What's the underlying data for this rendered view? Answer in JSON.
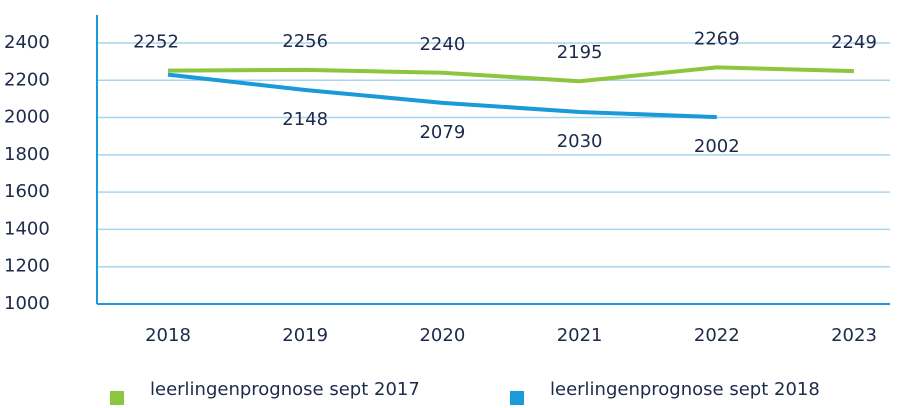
{
  "chart_data": {
    "type": "line",
    "categories": [
      "2018",
      "2019",
      "2020",
      "2021",
      "2022",
      "2023"
    ],
    "series": [
      {
        "name": "leerlingenprognose sept 2017",
        "color": "#8cc63f",
        "values": [
          2252,
          2256,
          2240,
          2195,
          2269,
          2249
        ]
      },
      {
        "name": "leerlingenprognose sept 2018",
        "color": "#1a9ad6",
        "values": [
          2230,
          2148,
          2079,
          2030,
          2002,
          null
        ],
        "value_labels": [
          null,
          "2148",
          "2079",
          "2030",
          "2002",
          null
        ]
      }
    ],
    "ylim": [
      1000,
      2550
    ],
    "yticks": [
      1000,
      1200,
      1400,
      1600,
      1800,
      2000,
      2200,
      2400
    ],
    "grid": true,
    "legend": "bottom"
  }
}
